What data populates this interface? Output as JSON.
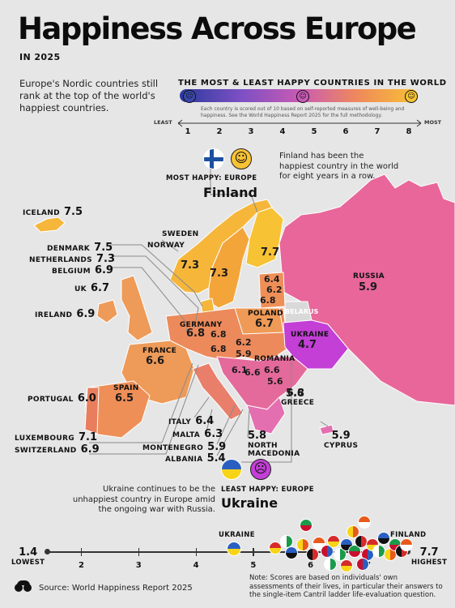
{
  "header": {
    "title": "Happiness Across Europe",
    "subtitle": "IN 2025",
    "intro": "Europe's Nordic countries still rank at the top of the world's happiest countries."
  },
  "scale": {
    "title": "THE MOST & LEAST HAPPY COUNTRIES IN THE WORLD",
    "note": "Each country is scored out of 10 based on self-reported measures of well-being and happiness. See the World Happiness Report 2025 for the full methodology.",
    "least": "LEAST",
    "most": "MOST",
    "ticks": [
      "1",
      "2",
      "3",
      "4",
      "5",
      "6",
      "7",
      "8"
    ],
    "gradient": [
      "#2b3a9c",
      "#7a4fc4",
      "#c85ab5",
      "#f08a5a",
      "#f7c234"
    ]
  },
  "highlight_most": {
    "label": "MOST HAPPY: EUROPE",
    "country": "Finland",
    "note": "Finland has been the happiest country in the world for eight years in a row."
  },
  "highlight_least": {
    "label": "LEAST HAPPY: EUROPE",
    "country": "Ukraine",
    "note": "Ukraine continues to be the unhappiest country in Europe amid the ongoing war with Russia."
  },
  "countries": {
    "iceland": {
      "name": "ICELAND",
      "score": "7.5"
    },
    "denmark": {
      "name": "DENMARK",
      "score": "7.5"
    },
    "netherlands": {
      "name": "NETHERLANDS",
      "score": "7.3"
    },
    "belgium": {
      "name": "BELGIUM",
      "score": "6.9"
    },
    "uk": {
      "name": "UK",
      "score": "6.7"
    },
    "ireland": {
      "name": "IRELAND",
      "score": "6.9"
    },
    "portugal": {
      "name": "PORTUGAL",
      "score": "6.0"
    },
    "luxembourg": {
      "name": "LUXEMBOURG",
      "score": "7.1"
    },
    "switzerland": {
      "name": "SWITZERLAND",
      "score": "6.9"
    },
    "sweden": {
      "name": "SWEDEN",
      "score": "7.3"
    },
    "norway": {
      "name": "NORWAY",
      "score": "7.3"
    },
    "finland": {
      "score": "7.7"
    },
    "russia": {
      "name": "RUSSIA",
      "score": "5.9"
    },
    "estonia": {
      "score": "6.4"
    },
    "latvia": {
      "score": "6.2"
    },
    "lithuania": {
      "score": "6.8"
    },
    "belarus": {
      "name": "BELARUS"
    },
    "poland": {
      "name": "POLAND",
      "score": "6.7"
    },
    "germany": {
      "name": "GERMANY",
      "score": "6.8"
    },
    "czechia": {
      "score": "6.8"
    },
    "austria": {
      "score": "6.8"
    },
    "slovakia": {
      "score": "6.2"
    },
    "hungary": {
      "score": "5.9"
    },
    "ukraine": {
      "name": "UKRAINE",
      "score": "4.7"
    },
    "romania": {
      "name": "ROMANIA",
      "score": "6.6"
    },
    "moldova": {
      "score": "5.6"
    },
    "slovenia": {
      "score": "6.1"
    },
    "croatia": {
      "score": "6.6"
    },
    "serbia": {
      "score": "6.6"
    },
    "france": {
      "name": "FRANCE",
      "score": "6.6"
    },
    "spain": {
      "name": "SPAIN",
      "score": "6.5"
    },
    "greece": {
      "name": "GREECE",
      "score": "5.8"
    },
    "italy": {
      "name": "ITALY",
      "score": "6.4"
    },
    "malta": {
      "name": "MALTA",
      "score": "6.3"
    },
    "montenegro": {
      "name": "MONTENEGRO",
      "score": "5.9"
    },
    "albania": {
      "name": "ALBANIA",
      "score": "5.4"
    },
    "north_macedonia": {
      "name": "NORTH MACEDONIA",
      "score": "5.8"
    },
    "cyprus": {
      "name": "CYPRUS",
      "score": "5.9"
    }
  },
  "bottom_scale": {
    "low_value": "1.4",
    "low_label": "LOWEST",
    "high_value": "7.7",
    "high_label": "HIGHEST",
    "ticks": [
      "2",
      "3",
      "4",
      "5",
      "6",
      "7"
    ],
    "ukraine_label": "UKRAINE",
    "finland_label": "FINLAND"
  },
  "footer": {
    "source": "Source: World Happiness Report 2025",
    "note": "Note: Scores are based on individuals' own assessments of their lives, in particular their answers to the single-item Cantril ladder life-evaluation question."
  },
  "colors": {
    "background": "#e6e6e6",
    "nordic": "#f5b63a",
    "west": "#ee9a58",
    "central": "#e97f6b",
    "russia": "#e8669a",
    "ukraine": "#c33fd6"
  }
}
